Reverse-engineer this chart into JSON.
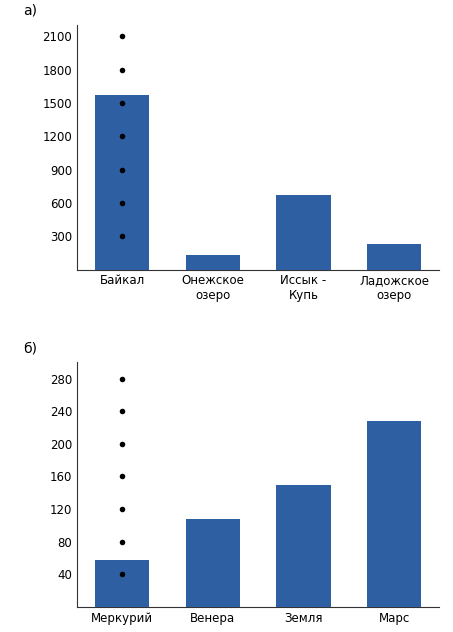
{
  "chart_a": {
    "label": "а)",
    "categories": [
      "Байкал",
      "Онежское\nозеро",
      "Иссык -\nКупь",
      "Ладожское\nозеро"
    ],
    "values": [
      1570,
      127,
      668,
      230
    ],
    "bar_color": "#2e5fa3",
    "yticks": [
      0,
      300,
      600,
      900,
      1200,
      1500,
      1800,
      2100
    ],
    "ylim": [
      0,
      2200
    ]
  },
  "chart_b": {
    "label": "б)",
    "categories": [
      "Меркурий",
      "Венера",
      "Земля",
      "Марс"
    ],
    "values": [
      57,
      108,
      150,
      228
    ],
    "bar_color": "#2e5fa3",
    "yticks": [
      0,
      40,
      80,
      120,
      160,
      200,
      240,
      280
    ],
    "ylim": [
      0,
      300
    ]
  },
  "background_color": "#ffffff",
  "bar_width": 0.6,
  "tick_fontsize": 8.5,
  "label_fontsize": 10
}
